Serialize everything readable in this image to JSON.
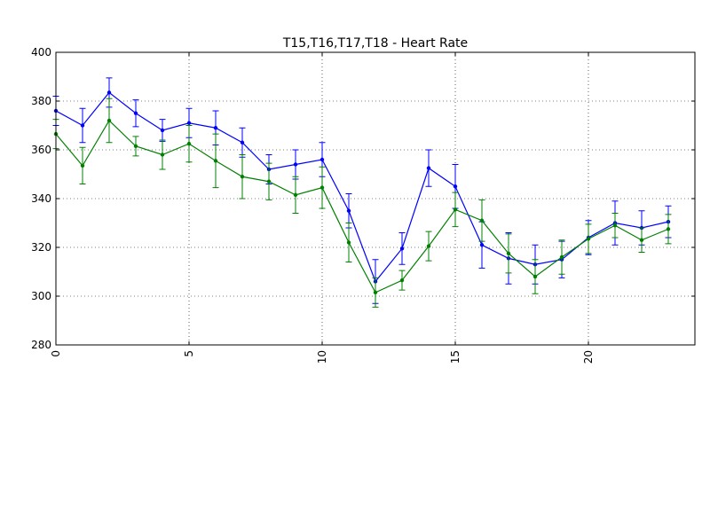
{
  "chart_data": {
    "type": "line",
    "title": "T15,T16,T17,T18 - Heart Rate",
    "xlabel": "",
    "ylabel": "",
    "xlim": [
      0,
      24
    ],
    "ylim": [
      280,
      400
    ],
    "xticks": [
      0,
      5,
      10,
      15,
      20
    ],
    "yticks": [
      280,
      300,
      320,
      340,
      360,
      380,
      400
    ],
    "grid": true,
    "error_bars": true,
    "x": [
      0,
      1,
      2,
      3,
      4,
      5,
      6,
      7,
      8,
      9,
      10,
      11,
      12,
      13,
      14,
      15,
      16,
      17,
      18,
      19,
      20,
      21,
      22,
      23
    ],
    "series": [
      {
        "color": "#0000ff",
        "values": [
          376,
          370,
          383.5,
          375,
          368,
          371,
          369,
          363,
          352,
          354,
          356,
          335,
          306,
          319.5,
          352.5,
          345,
          321,
          315.5,
          313,
          315,
          324,
          330,
          328,
          330.5
        ],
        "errors": [
          6,
          7,
          6,
          5.5,
          4.5,
          6,
          7,
          6,
          6,
          6,
          7,
          7,
          9,
          6.5,
          7.5,
          9,
          9.5,
          10.5,
          8,
          7.5,
          7,
          9,
          7,
          6.5
        ]
      },
      {
        "color": "#008000",
        "values": [
          366.5,
          353.5,
          372,
          361.5,
          358,
          362.5,
          355.5,
          349,
          347,
          341.5,
          344.5,
          322,
          301.5,
          306.5,
          320.5,
          335.5,
          331,
          317.5,
          308,
          316,
          323.5,
          329,
          323,
          327.5
        ],
        "errors": [
          6,
          7.5,
          9,
          4,
          6,
          7.5,
          11,
          9,
          7.5,
          7.5,
          8.5,
          8,
          6,
          4,
          6,
          7,
          8.5,
          8,
          7,
          7,
          6,
          5,
          5,
          6
        ]
      }
    ]
  }
}
